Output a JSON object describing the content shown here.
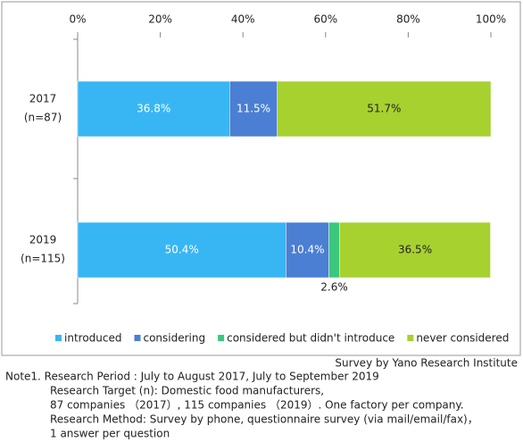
{
  "chart_data": {
    "type": "stacked-barh",
    "categories": [
      [
        "2017",
        "(n=87)"
      ],
      [
        "2019",
        "(n=115)"
      ]
    ],
    "series": [
      {
        "name": "introduced",
        "color": "#38b6f4",
        "values": [
          36.8,
          50.4
        ],
        "value_labels": [
          "36.8%",
          "50.4%"
        ]
      },
      {
        "name": "considering",
        "color": "#4b7fd3",
        "values": [
          11.5,
          10.4
        ],
        "value_labels": [
          "11.5%",
          "10.4%"
        ]
      },
      {
        "name": "considered but didn't introduce",
        "color": "#3cc77e",
        "values": [
          0,
          2.6
        ],
        "value_labels": [
          null,
          "2.6%"
        ]
      },
      {
        "name": "never considered",
        "color": "#a7d12f",
        "values": [
          51.7,
          36.5
        ],
        "value_labels": [
          "51.7%",
          "36.5%"
        ]
      }
    ],
    "xlim": [
      0,
      100
    ],
    "xticks": [
      {
        "value": 0,
        "label": "0%"
      },
      {
        "value": 20,
        "label": "20%"
      },
      {
        "value": 40,
        "label": "40%"
      },
      {
        "value": 60,
        "label": "60%"
      },
      {
        "value": 80,
        "label": "80%"
      },
      {
        "value": 100,
        "label": "100%"
      }
    ],
    "legend": "bottom",
    "source": "Survey by Yano Research Institute",
    "notes": [
      "Note1.  Research Period : July to August 2017, July to September 2019",
      "Research Target (n): Domestic food manufacturers,",
      "87 companies （2017）, 115 companies （2019）. One factory per company.",
      "Research Method: Survey by phone, questionnaire survey (via mail/email/fax)，",
      "1 answer per question"
    ]
  }
}
